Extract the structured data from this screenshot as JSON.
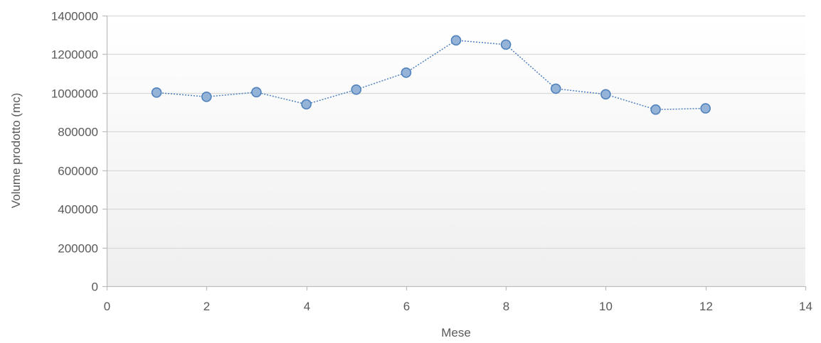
{
  "chart_data": {
    "type": "scatter",
    "title": "",
    "xlabel": "Mese",
    "ylabel": "Volume prodotto (mc)",
    "xlim": [
      0,
      14
    ],
    "ylim": [
      0,
      1400000
    ],
    "x_ticks": [
      0,
      2,
      4,
      6,
      8,
      10,
      12,
      14
    ],
    "y_ticks": [
      0,
      200000,
      400000,
      600000,
      800000,
      1000000,
      1200000,
      1400000
    ],
    "x_tick_labels": [
      "0",
      "2",
      "4",
      "6",
      "8",
      "10",
      "12",
      "14"
    ],
    "y_tick_labels": [
      "0",
      "200000",
      "400000",
      "600000",
      "800000",
      "1000000",
      "1200000",
      "1400000"
    ],
    "grid": true,
    "series": [
      {
        "x": [
          1,
          2,
          3,
          4,
          5,
          6,
          7,
          8,
          9,
          10,
          11,
          12
        ],
        "y": [
          1002000,
          980000,
          1004000,
          941000,
          1017000,
          1105000,
          1272000,
          1250000,
          1022000,
          993000,
          914000,
          920000
        ],
        "color": "#4f81bd",
        "marker_fill": "#95b3d7",
        "marker_stroke": "#4f81bd",
        "line_style": "dotted"
      }
    ]
  }
}
